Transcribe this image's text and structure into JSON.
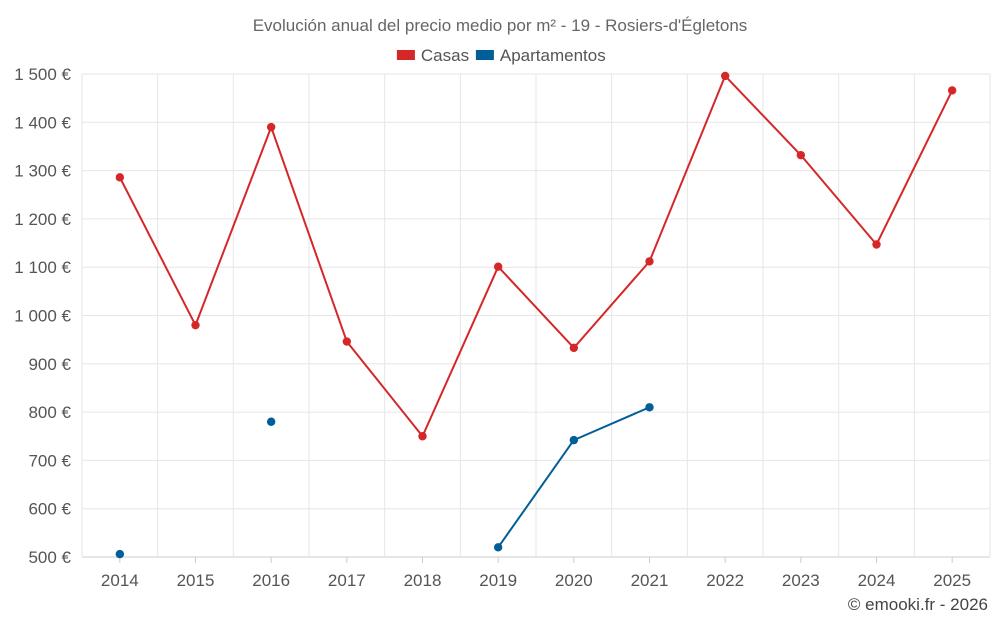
{
  "chart_data": {
    "type": "line",
    "title": "Evolución anual del precio medio por m² - 19 - Rosiers-d'Égletons",
    "xlabel": "",
    "ylabel": "",
    "categories": [
      "2014",
      "2015",
      "2016",
      "2017",
      "2018",
      "2019",
      "2020",
      "2021",
      "2022",
      "2023",
      "2024",
      "2025"
    ],
    "ylim": [
      500,
      1500
    ],
    "yticks": [
      500,
      600,
      700,
      800,
      900,
      1000,
      1100,
      1200,
      1300,
      1400,
      1500
    ],
    "ytick_labels": [
      "500 €",
      "600 €",
      "700 €",
      "800 €",
      "900 €",
      "1 000 €",
      "1 100 €",
      "1 200 €",
      "1 300 €",
      "1 400 €",
      "1 500 €"
    ],
    "grid": true,
    "legend_position": "top-center",
    "series": [
      {
        "name": "Casas",
        "color": "#d62728",
        "values": [
          1286,
          980,
          1390,
          946,
          750,
          1101,
          933,
          1112,
          1496,
          1332,
          1147,
          1466
        ]
      },
      {
        "name": "Apartamentos",
        "color": "#005f99",
        "values": [
          506,
          null,
          780,
          null,
          null,
          520,
          742,
          810,
          null,
          null,
          null,
          null
        ]
      }
    ],
    "credit": "© emooki.fr - 2026"
  }
}
